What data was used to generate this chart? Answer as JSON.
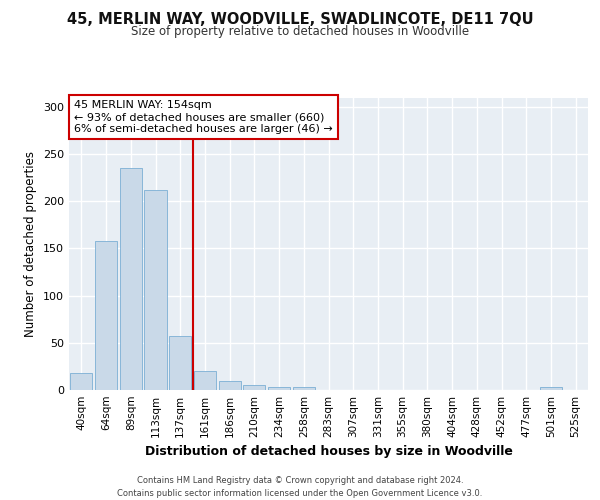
{
  "title": "45, MERLIN WAY, WOODVILLE, SWADLINCOTE, DE11 7QU",
  "subtitle": "Size of property relative to detached houses in Woodville",
  "xlabel": "Distribution of detached houses by size in Woodville",
  "ylabel": "Number of detached properties",
  "bin_labels": [
    "40sqm",
    "64sqm",
    "89sqm",
    "113sqm",
    "137sqm",
    "161sqm",
    "186sqm",
    "210sqm",
    "234sqm",
    "258sqm",
    "283sqm",
    "307sqm",
    "331sqm",
    "355sqm",
    "380sqm",
    "404sqm",
    "428sqm",
    "452sqm",
    "477sqm",
    "501sqm",
    "525sqm"
  ],
  "bar_values": [
    18,
    158,
    235,
    212,
    57,
    20,
    10,
    5,
    3,
    3,
    0,
    0,
    0,
    0,
    0,
    0,
    0,
    0,
    0,
    3,
    0
  ],
  "bar_color": "#c9d9e8",
  "bar_edge_color": "#7bafd4",
  "vline_color": "#cc0000",
  "annotation_box_edge": "#cc0000",
  "ylim": [
    0,
    310
  ],
  "yticks": [
    0,
    50,
    100,
    150,
    200,
    250,
    300
  ],
  "background_color": "#e8eef4",
  "grid_color": "#ffffff",
  "annotation_line1": "45 MERLIN WAY: 154sqm",
  "annotation_line2": "← 93% of detached houses are smaller (660)",
  "annotation_line3": "6% of semi-detached houses are larger (46) →",
  "footer_line1": "Contains HM Land Registry data © Crown copyright and database right 2024.",
  "footer_line2": "Contains public sector information licensed under the Open Government Licence v3.0."
}
